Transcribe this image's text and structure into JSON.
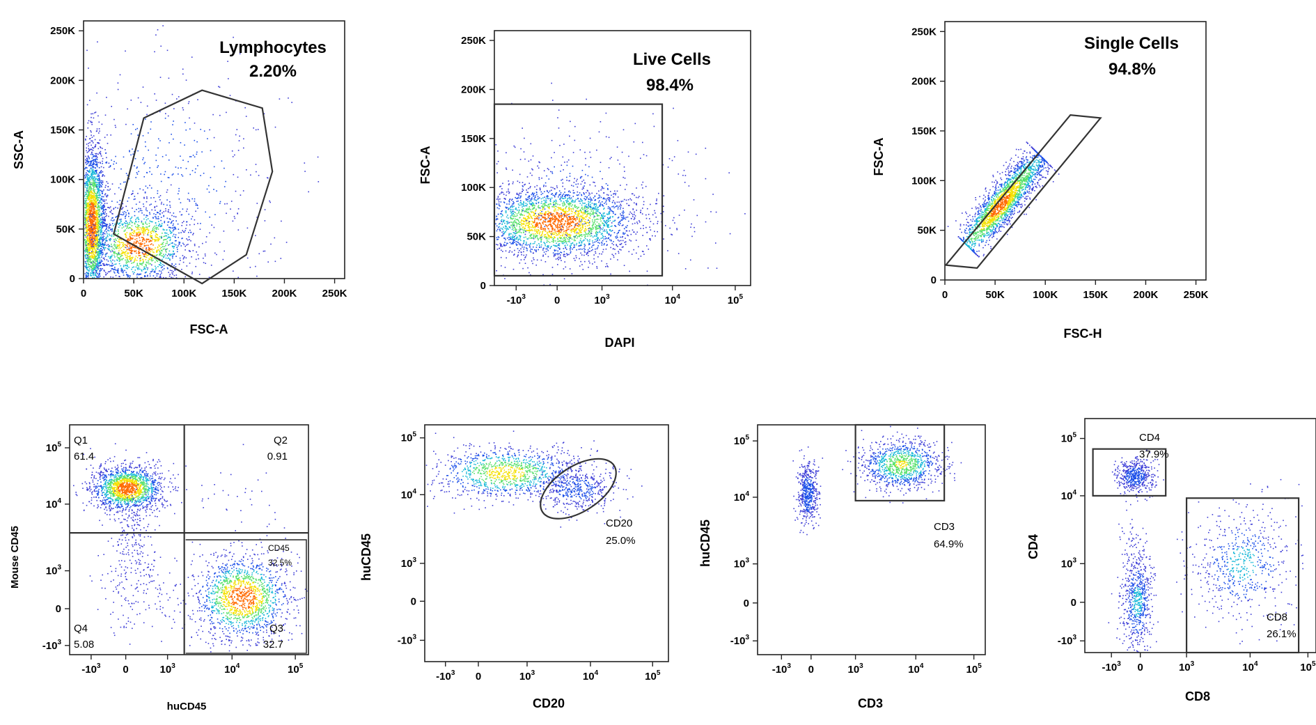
{
  "chart_data": [
    {
      "id": "lymphocytes",
      "type": "scatter",
      "xlabel": "FSC-A",
      "ylabel": "SSC-A",
      "xlim": [
        0,
        260000
      ],
      "ylim": [
        0,
        260000
      ],
      "xticks": [
        {
          "v": 0,
          "t": "0"
        },
        {
          "v": 50000,
          "t": "50K"
        },
        {
          "v": 100000,
          "t": "100K"
        },
        {
          "v": 150000,
          "t": "150K"
        },
        {
          "v": 200000,
          "t": "200K"
        },
        {
          "v": 250000,
          "t": "250K"
        }
      ],
      "yticks": [
        {
          "v": 0,
          "t": "0"
        },
        {
          "v": 50000,
          "t": "50K"
        },
        {
          "v": 100000,
          "t": "100K"
        },
        {
          "v": 150000,
          "t": "150K"
        },
        {
          "v": 200000,
          "t": "200K"
        },
        {
          "v": 250000,
          "t": "250K"
        }
      ],
      "gate_polygon": [
        [
          30000,
          45000
        ],
        [
          60000,
          162000
        ],
        [
          118000,
          190000
        ],
        [
          178000,
          172000
        ],
        [
          188000,
          108000
        ],
        [
          162000,
          24000
        ],
        [
          118000,
          -5000
        ]
      ],
      "gate_name": "Lymphocytes",
      "gate_value": "2.20%",
      "clusters": [
        {
          "cx": 8000,
          "cy": 55000,
          "sx": 7000,
          "sy": 40000,
          "n": 2600
        },
        {
          "cx": 55000,
          "cy": 35000,
          "sx": 25000,
          "sy": 20000,
          "n": 1400
        },
        {
          "cx": 80000,
          "cy": 100000,
          "sx": 60000,
          "sy": 60000,
          "n": 500
        }
      ]
    },
    {
      "id": "live-cells",
      "type": "scatter",
      "xlabel": "DAPI",
      "ylabel": "FSC-A",
      "xlim": [
        0,
        1
      ],
      "ylim": [
        0,
        260000
      ],
      "xticks": [
        {
          "v": 0.085,
          "t": "-10",
          "e": "3"
        },
        {
          "v": 0.245,
          "t": "0"
        },
        {
          "v": 0.42,
          "t": "10",
          "e": "3"
        },
        {
          "v": 0.695,
          "t": "10",
          "e": "4"
        },
        {
          "v": 0.94,
          "t": "10",
          "e": "5"
        }
      ],
      "yticks": [
        {
          "v": 0,
          "t": "0"
        },
        {
          "v": 50000,
          "t": "50K"
        },
        {
          "v": 100000,
          "t": "100K"
        },
        {
          "v": 150000,
          "t": "150K"
        },
        {
          "v": 200000,
          "t": "200K"
        },
        {
          "v": 250000,
          "t": "250K"
        }
      ],
      "gate_box": [
        [
          0,
          10000
        ],
        [
          0.655,
          185000
        ]
      ],
      "gate_name": "Live Cells",
      "gate_value": "98.4%",
      "clusters": [
        {
          "cx": 0.24,
          "cy": 65000,
          "sx": 0.16,
          "sy": 18000,
          "n": 2600
        },
        {
          "cx": 0.3,
          "cy": 90000,
          "sx": 0.25,
          "sy": 40000,
          "n": 400
        }
      ]
    },
    {
      "id": "single-cells",
      "type": "scatter",
      "xlabel": "FSC-H",
      "ylabel": "FSC-A",
      "xlim": [
        0,
        260000
      ],
      "ylim": [
        0,
        260000
      ],
      "xticks": [
        {
          "v": 0,
          "t": "0"
        },
        {
          "v": 50000,
          "t": "50K"
        },
        {
          "v": 100000,
          "t": "100K"
        },
        {
          "v": 150000,
          "t": "150K"
        },
        {
          "v": 200000,
          "t": "200K"
        },
        {
          "v": 250000,
          "t": "250K"
        }
      ],
      "yticks": [
        {
          "v": 0,
          "t": "0"
        },
        {
          "v": 50000,
          "t": "50K"
        },
        {
          "v": 100000,
          "t": "100K"
        },
        {
          "v": 150000,
          "t": "150K"
        },
        {
          "v": 200000,
          "t": "200K"
        },
        {
          "v": 250000,
          "t": "250K"
        }
      ],
      "gate_polygon": [
        [
          1000,
          15000
        ],
        [
          32000,
          12000
        ],
        [
          155000,
          163000
        ],
        [
          125000,
          166000
        ]
      ],
      "gate_name": "Single Cells",
      "gate_value": "94.8%",
      "diagonal": {
        "x0": 22000,
        "y0": 35000,
        "x1": 95000,
        "y1": 125000,
        "spread": 6000,
        "n": 2200
      }
    },
    {
      "id": "mouse-vs-hu-cd45",
      "type": "scatter",
      "xlabel": "huCD45",
      "ylabel": "Mouse CD45",
      "xlim": [
        0,
        1
      ],
      "ylim": [
        0,
        1
      ],
      "xticks": [
        {
          "v": 0.09,
          "t": "-10",
          "e": "3"
        },
        {
          "v": 0.235,
          "t": "0"
        },
        {
          "v": 0.41,
          "t": "10",
          "e": "3"
        },
        {
          "v": 0.68,
          "t": "10",
          "e": "4"
        },
        {
          "v": 0.945,
          "t": "10",
          "e": "5"
        }
      ],
      "yticks": [
        {
          "v": 0.04,
          "t": "-10",
          "e": "3"
        },
        {
          "v": 0.2,
          "t": "0"
        },
        {
          "v": 0.365,
          "t": "10",
          "e": "3"
        },
        {
          "v": 0.655,
          "t": "10",
          "e": "4"
        },
        {
          "v": 0.9,
          "t": "10",
          "e": "5"
        }
      ],
      "quad_x": 0.48,
      "quad_y": 0.53,
      "quadrants": [
        {
          "name": "Q1",
          "value": "61.4"
        },
        {
          "name": "Q2",
          "value": "0.91"
        },
        {
          "name": "Q3",
          "value": "32.7"
        },
        {
          "name": "Q4",
          "value": "5.08"
        }
      ],
      "inner_gate_name": "CD45",
      "inner_gate_value": "32.5%",
      "clusters": [
        {
          "cx": 0.24,
          "cy": 0.725,
          "sx": 0.075,
          "sy": 0.05,
          "n": 1600
        },
        {
          "cx": 0.27,
          "cy": 0.32,
          "sx": 0.08,
          "sy": 0.12,
          "n": 200
        },
        {
          "cx": 0.265,
          "cy": 0.55,
          "sx": 0.04,
          "sy": 0.08,
          "n": 120
        },
        {
          "cx": 0.72,
          "cy": 0.25,
          "sx": 0.1,
          "sy": 0.09,
          "n": 1500
        },
        {
          "cx": 0.7,
          "cy": 0.65,
          "sx": 0.1,
          "sy": 0.1,
          "n": 40
        }
      ]
    },
    {
      "id": "cd20",
      "type": "scatter",
      "xlabel": "CD20",
      "ylabel": "huCD45",
      "xlim": [
        0,
        1
      ],
      "ylim": [
        0,
        1
      ],
      "xticks": [
        {
          "v": 0.085,
          "t": "-10",
          "e": "3"
        },
        {
          "v": 0.22,
          "t": "0"
        },
        {
          "v": 0.42,
          "t": "10",
          "e": "3"
        },
        {
          "v": 0.68,
          "t": "10",
          "e": "4"
        },
        {
          "v": 0.935,
          "t": "10",
          "e": "5"
        }
      ],
      "yticks": [
        {
          "v": 0.09,
          "t": "-10",
          "e": "3"
        },
        {
          "v": 0.255,
          "t": "0"
        },
        {
          "v": 0.415,
          "t": "10",
          "e": "3"
        },
        {
          "v": 0.705,
          "t": "10",
          "e": "4"
        },
        {
          "v": 0.945,
          "t": "10",
          "e": "5"
        }
      ],
      "gate_ellipse": {
        "cx": 0.63,
        "cy": 0.73,
        "rx": 0.175,
        "ry": 0.095,
        "rot": -33
      },
      "gate_name": "CD20",
      "gate_value": "25.0%",
      "clusters": [
        {
          "cx": 0.33,
          "cy": 0.8,
          "sx": 0.15,
          "sy": 0.055,
          "n": 1100
        },
        {
          "cx": 0.62,
          "cy": 0.73,
          "sx": 0.08,
          "sy": 0.05,
          "n": 450
        }
      ]
    },
    {
      "id": "cd3",
      "type": "scatter",
      "xlabel": "CD3",
      "ylabel": "huCD45",
      "xlim": [
        0,
        1
      ],
      "ylim": [
        0,
        1
      ],
      "xticks": [
        {
          "v": 0.105,
          "t": "-10",
          "e": "3"
        },
        {
          "v": 0.235,
          "t": "0"
        },
        {
          "v": 0.43,
          "t": "10",
          "e": "3"
        },
        {
          "v": 0.695,
          "t": "10",
          "e": "4"
        },
        {
          "v": 0.95,
          "t": "10",
          "e": "5"
        }
      ],
      "yticks": [
        {
          "v": 0.06,
          "t": "-10",
          "e": "3"
        },
        {
          "v": 0.225,
          "t": "0"
        },
        {
          "v": 0.395,
          "t": "10",
          "e": "3"
        },
        {
          "v": 0.685,
          "t": "10",
          "e": "4"
        },
        {
          "v": 0.93,
          "t": "10",
          "e": "5"
        }
      ],
      "gate_box": [
        [
          0.43,
          0.67
        ],
        [
          0.82,
          1.0
        ]
      ],
      "gate_name": "CD3",
      "gate_value": "64.9%",
      "clusters": [
        {
          "cx": 0.22,
          "cy": 0.7,
          "sx": 0.022,
          "sy": 0.07,
          "n": 500
        },
        {
          "cx": 0.63,
          "cy": 0.83,
          "sx": 0.09,
          "sy": 0.055,
          "n": 1000
        }
      ]
    },
    {
      "id": "cd4-cd8",
      "type": "scatter",
      "xlabel": "CD8",
      "ylabel": "CD4",
      "xlim": [
        0,
        1
      ],
      "ylim": [
        0,
        1
      ],
      "xticks": [
        {
          "v": 0.115,
          "t": "-10",
          "e": "3"
        },
        {
          "v": 0.24,
          "t": "0"
        },
        {
          "v": 0.44,
          "t": "10",
          "e": "3"
        },
        {
          "v": 0.715,
          "t": "10",
          "e": "4"
        },
        {
          "v": 0.965,
          "t": "10",
          "e": "5"
        }
      ],
      "yticks": [
        {
          "v": 0.05,
          "t": "-10",
          "e": "3"
        },
        {
          "v": 0.215,
          "t": "0"
        },
        {
          "v": 0.38,
          "t": "10",
          "e": "3"
        },
        {
          "v": 0.67,
          "t": "10",
          "e": "4"
        },
        {
          "v": 0.915,
          "t": "10",
          "e": "5"
        }
      ],
      "gate_box_cd4": [
        [
          0.035,
          0.67
        ],
        [
          0.35,
          0.87
        ]
      ],
      "gate_box_cd8": [
        [
          0.44,
          0.0
        ],
        [
          0.925,
          0.66
        ]
      ],
      "gate_cd4_name": "CD4",
      "gate_cd4_value": "37.9%",
      "gate_cd8_name": "CD8",
      "gate_cd8_value": "26.1%",
      "clusters": [
        {
          "cx": 0.215,
          "cy": 0.755,
          "sx": 0.04,
          "sy": 0.035,
          "n": 500
        },
        {
          "cx": 0.225,
          "cy": 0.22,
          "sx": 0.035,
          "sy": 0.11,
          "n": 600
        },
        {
          "cx": 0.2,
          "cy": 0.45,
          "sx": 0.035,
          "sy": 0.1,
          "n": 60
        },
        {
          "cx": 0.68,
          "cy": 0.38,
          "sx": 0.11,
          "sy": 0.12,
          "n": 600
        }
      ]
    }
  ]
}
